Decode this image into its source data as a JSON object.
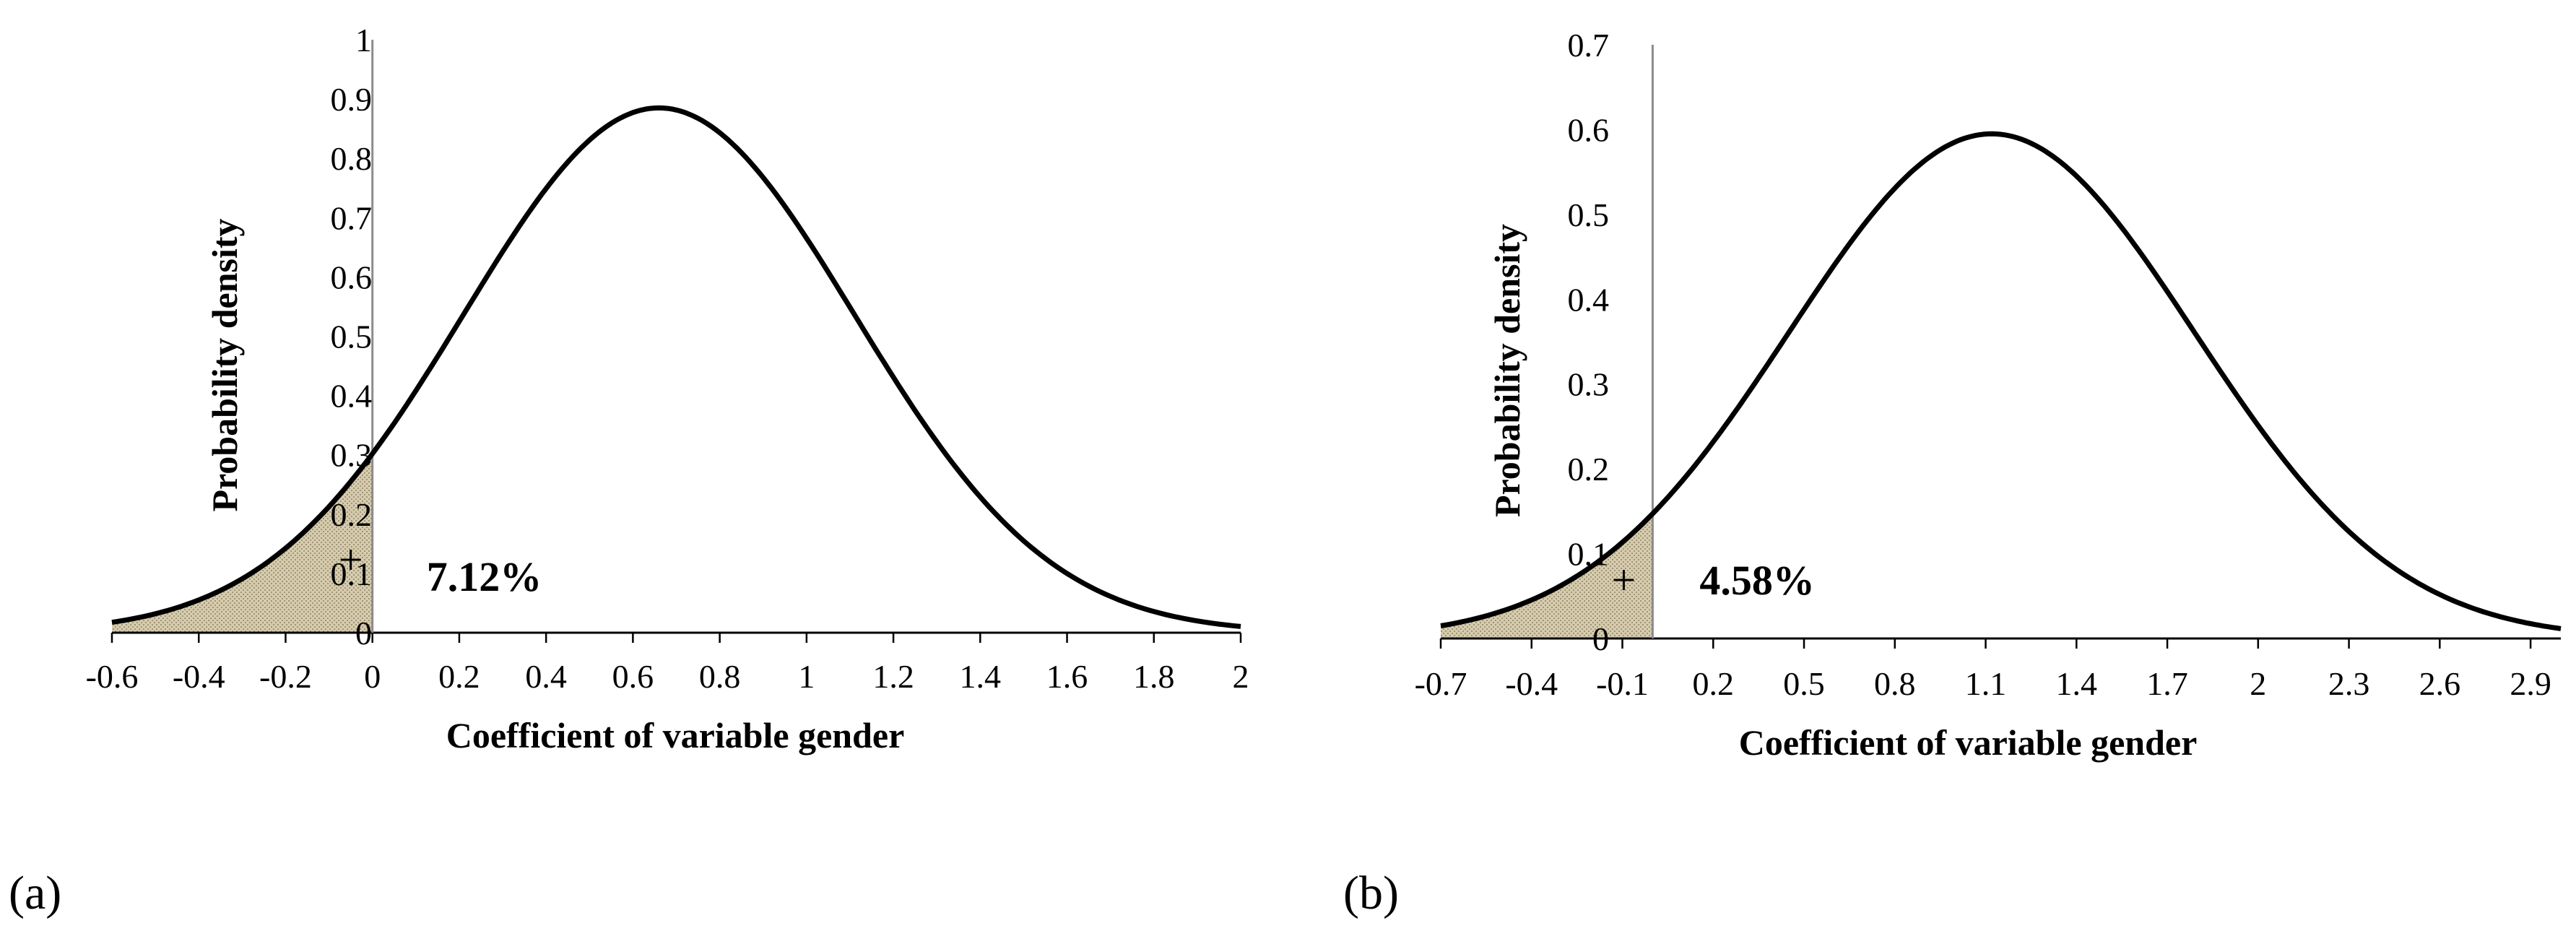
{
  "chart_data": [
    {
      "type": "area",
      "panel": "(a)",
      "title": "",
      "xlabel": "Coefficient of variable gender",
      "ylabel": "Probability density",
      "xlim": [
        -0.6,
        2.0
      ],
      "ylim": [
        0,
        1
      ],
      "xticks": [
        "-0.6",
        "-0.4",
        "-0.2",
        "0",
        "0.2",
        "0.4",
        "0.6",
        "0.8",
        "1",
        "1.2",
        "1.4",
        "1.6",
        "1.8",
        "2"
      ],
      "yticks": [
        "0",
        "0.1",
        "0.2",
        "0.3",
        "0.4",
        "0.5",
        "0.6",
        "0.7",
        "0.8",
        "0.9",
        "1"
      ],
      "distribution": {
        "name": "normal",
        "mean": 0.66,
        "sd": 0.45,
        "peak_density": 0.885
      },
      "shaded_region": {
        "from": -0.6,
        "to": 0,
        "annotation": "7.12%",
        "marker": "+"
      },
      "colors": {
        "curve": "#000000",
        "shade": "#d6ccad",
        "divider": "#8c8c8c"
      }
    },
    {
      "type": "area",
      "panel": "(b)",
      "title": "",
      "xlabel": "Coefficient of variable gender",
      "ylabel": "Probability density",
      "xlim": [
        -0.7,
        3.0
      ],
      "ylim": [
        0,
        0.7
      ],
      "xticks": [
        "-0.7",
        "-0.4",
        "-0.1",
        "0.2",
        "0.5",
        "0.8",
        "1.1",
        "1.4",
        "1.7",
        "2",
        "2.3",
        "2.6",
        "2.9"
      ],
      "yticks": [
        "0",
        "0.1",
        "0.2",
        "0.3",
        "0.4",
        "0.5",
        "0.6",
        "0.7"
      ],
      "distribution": {
        "name": "normal",
        "mean": 1.12,
        "sd": 0.67,
        "peak_density": 0.595
      },
      "shaded_region": {
        "from": -0.7,
        "to": 0,
        "annotation": "4.58%",
        "marker": "+"
      },
      "colors": {
        "curve": "#000000",
        "shade": "#d6ccad",
        "divider": "#8c8c8c"
      }
    }
  ]
}
